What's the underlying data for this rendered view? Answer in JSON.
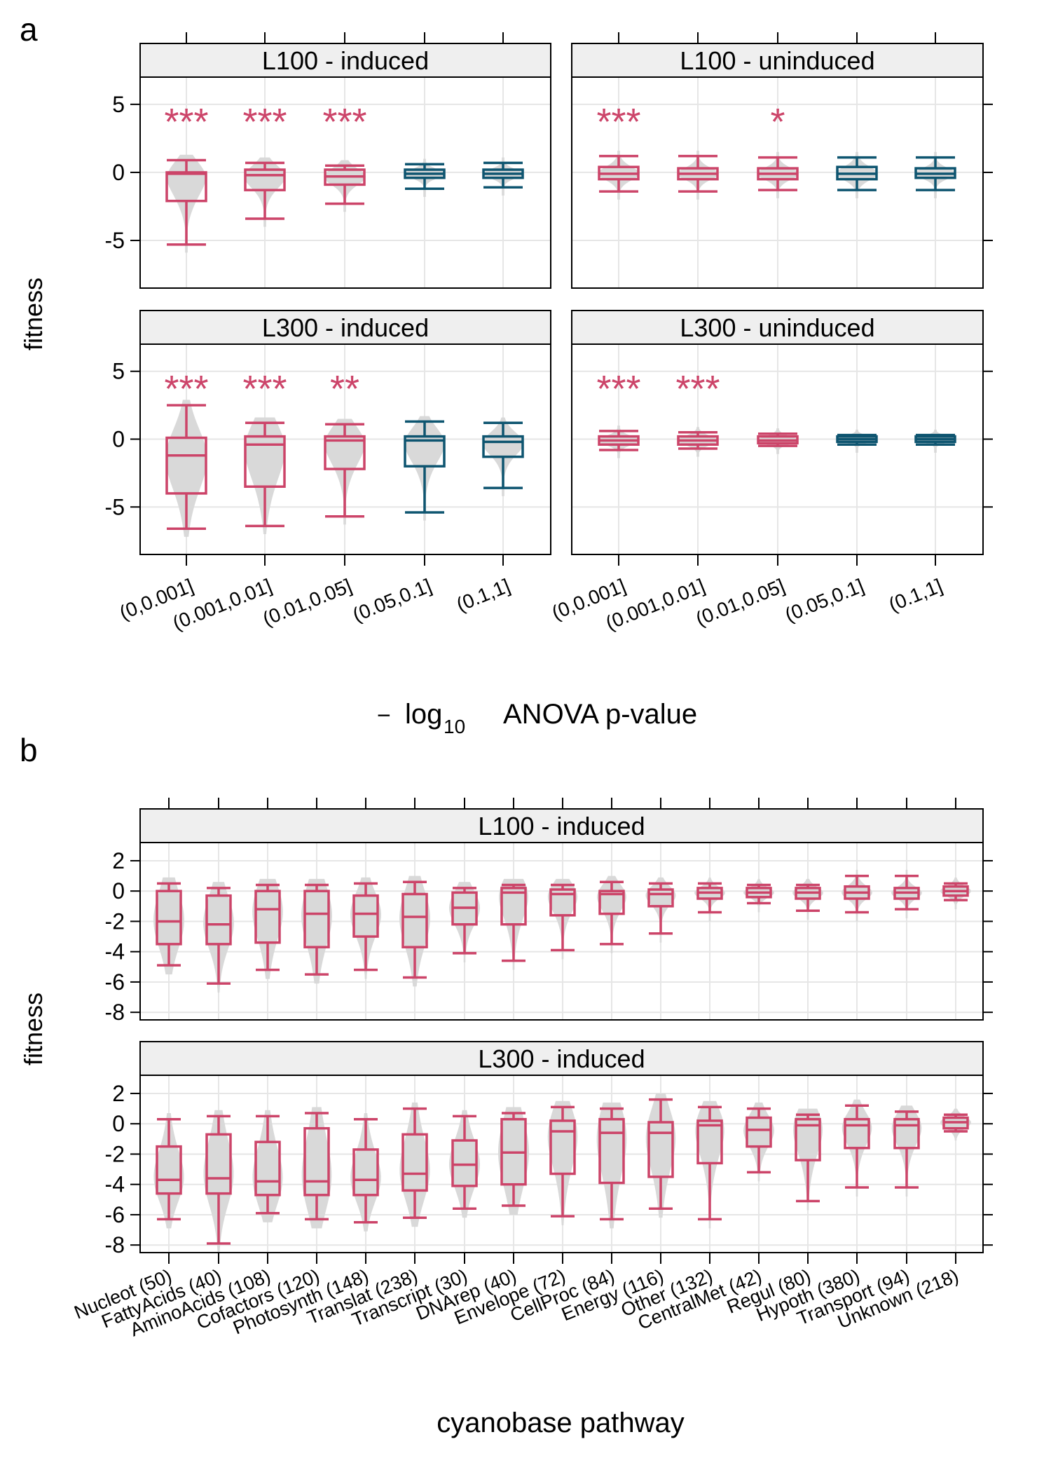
{
  "panel_labels": [
    "a",
    "b"
  ],
  "colors": {
    "significant": "#cc4469",
    "nonsignificant": "#0e5570",
    "violin": "#d9d9d9",
    "strip_bg": "#efefef",
    "grid": "#e6e6e6"
  },
  "chart_data": [
    {
      "type": "box",
      "panel": "a",
      "xlabel": "− log₁₀ ANOVA p-value",
      "xlabel_parts": {
        "minus": "−",
        "log": "log",
        "sub": "10",
        "rest": "ANOVA p-value"
      },
      "ylabel": "fitness",
      "ylim": [
        -8.5,
        7
      ],
      "yticks": [
        -5,
        0,
        5
      ],
      "yticklabels": [
        "-5",
        "0",
        "5"
      ],
      "categories": [
        "(0,0.001]",
        "(0.001,0.01]",
        "(0.01,0.05]",
        "(0.05,0.1]",
        "(0.1,1]"
      ],
      "facets": [
        {
          "strip": "L100 - induced",
          "stars": [
            "***",
            "***",
            "***",
            "",
            ""
          ],
          "colors": [
            "significant",
            "significant",
            "significant",
            "nonsignificant",
            "nonsignificant"
          ],
          "boxes": [
            {
              "whislo": -5.3,
              "q1": -2.1,
              "med": -0.1,
              "q3": 0.0,
              "whishi": 0.9
            },
            {
              "whislo": -3.4,
              "q1": -1.3,
              "med": -0.2,
              "q3": 0.2,
              "whishi": 0.7
            },
            {
              "whislo": -2.3,
              "q1": -0.9,
              "med": -0.3,
              "q3": 0.2,
              "whishi": 0.5
            },
            {
              "whislo": -1.2,
              "q1": -0.4,
              "med": -0.1,
              "q3": 0.2,
              "whishi": 0.6
            },
            {
              "whislo": -1.1,
              "q1": -0.4,
              "med": -0.1,
              "q3": 0.2,
              "whishi": 0.7
            }
          ]
        },
        {
          "strip": "L100 - uninduced",
          "stars": [
            "***",
            "",
            "*",
            "",
            ""
          ],
          "colors": [
            "significant",
            "significant",
            "significant",
            "nonsignificant",
            "nonsignificant"
          ],
          "boxes": [
            {
              "whislo": -1.4,
              "q1": -0.5,
              "med": -0.1,
              "q3": 0.4,
              "whishi": 1.2
            },
            {
              "whislo": -1.4,
              "q1": -0.5,
              "med": -0.1,
              "q3": 0.3,
              "whishi": 1.2
            },
            {
              "whislo": -1.3,
              "q1": -0.5,
              "med": -0.1,
              "q3": 0.3,
              "whishi": 1.1
            },
            {
              "whislo": -1.3,
              "q1": -0.5,
              "med": -0.1,
              "q3": 0.4,
              "whishi": 1.1
            },
            {
              "whislo": -1.3,
              "q1": -0.4,
              "med": -0.1,
              "q3": 0.3,
              "whishi": 1.1
            }
          ]
        },
        {
          "strip": "L300 - induced",
          "stars": [
            "***",
            "***",
            "**",
            "",
            ""
          ],
          "colors": [
            "significant",
            "significant",
            "significant",
            "nonsignificant",
            "nonsignificant"
          ],
          "boxes": [
            {
              "whislo": -6.6,
              "q1": -4.0,
              "med": -1.2,
              "q3": 0.1,
              "whishi": 2.5
            },
            {
              "whislo": -6.4,
              "q1": -3.5,
              "med": -0.4,
              "q3": 0.2,
              "whishi": 1.2
            },
            {
              "whislo": -5.7,
              "q1": -2.2,
              "med": -0.1,
              "q3": 0.2,
              "whishi": 1.1
            },
            {
              "whislo": -5.4,
              "q1": -2.0,
              "med": -0.1,
              "q3": 0.2,
              "whishi": 1.3
            },
            {
              "whislo": -3.6,
              "q1": -1.3,
              "med": -0.2,
              "q3": 0.2,
              "whishi": 1.2
            }
          ]
        },
        {
          "strip": "L300 - uninduced",
          "stars": [
            "***",
            "***",
            "",
            "",
            ""
          ],
          "colors": [
            "significant",
            "significant",
            "significant",
            "nonsignificant",
            "nonsignificant"
          ],
          "boxes": [
            {
              "whislo": -0.8,
              "q1": -0.4,
              "med": -0.1,
              "q3": 0.2,
              "whishi": 0.6
            },
            {
              "whislo": -0.7,
              "q1": -0.4,
              "med": -0.1,
              "q3": 0.2,
              "whishi": 0.5
            },
            {
              "whislo": -0.5,
              "q1": -0.3,
              "med": -0.1,
              "q3": 0.2,
              "whishi": 0.4
            },
            {
              "whislo": -0.4,
              "q1": -0.2,
              "med": 0.0,
              "q3": 0.2,
              "whishi": 0.3
            },
            {
              "whislo": -0.4,
              "q1": -0.2,
              "med": 0.0,
              "q3": 0.2,
              "whishi": 0.3
            }
          ]
        }
      ]
    },
    {
      "type": "box",
      "panel": "b",
      "xlabel": "cyanobase pathway",
      "ylabel": "fitness",
      "ylim": [
        -8.5,
        3.2
      ],
      "yticks": [
        -8,
        -6,
        -4,
        -2,
        0,
        2
      ],
      "yticklabels": [
        "-8",
        "-6",
        "-4",
        "-2",
        "0",
        "2"
      ],
      "categories": [
        "Nucleot (50)",
        "FattyAcids (40)",
        "AminoAcids (108)",
        "Cofactors (120)",
        "Photosynth (148)",
        "Translat (238)",
        "Transcript (30)",
        "DNArep (40)",
        "Envelope (72)",
        "CellProc (84)",
        "Energy (116)",
        "Other (132)",
        "CentralMet (42)",
        "Regul (80)",
        "Hypoth (380)",
        "Transport (94)",
        "Unknown (218)"
      ],
      "facets": [
        {
          "strip": "L100 - induced",
          "boxes": [
            {
              "whislo": -4.9,
              "q1": -3.5,
              "med": -2.0,
              "q3": 0.0,
              "whishi": 0.5
            },
            {
              "whislo": -6.1,
              "q1": -3.5,
              "med": -2.2,
              "q3": -0.3,
              "whishi": 0.2
            },
            {
              "whislo": -5.2,
              "q1": -3.4,
              "med": -1.2,
              "q3": 0.0,
              "whishi": 0.4
            },
            {
              "whislo": -5.5,
              "q1": -3.7,
              "med": -1.5,
              "q3": 0.0,
              "whishi": 0.4
            },
            {
              "whislo": -5.2,
              "q1": -3.0,
              "med": -1.5,
              "q3": -0.3,
              "whishi": 0.5
            },
            {
              "whislo": -5.7,
              "q1": -3.7,
              "med": -1.7,
              "q3": -0.2,
              "whishi": 0.6
            },
            {
              "whislo": -4.1,
              "q1": -2.2,
              "med": -1.1,
              "q3": -0.1,
              "whishi": 0.2
            },
            {
              "whislo": -4.6,
              "q1": -2.2,
              "med": -0.1,
              "q3": 0.2,
              "whishi": 0.4
            },
            {
              "whislo": -3.9,
              "q1": -1.6,
              "med": -0.2,
              "q3": 0.1,
              "whishi": 0.4
            },
            {
              "whislo": -3.5,
              "q1": -1.5,
              "med": -0.2,
              "q3": 0.0,
              "whishi": 0.6
            },
            {
              "whislo": -2.8,
              "q1": -1.0,
              "med": -0.2,
              "q3": 0.1,
              "whishi": 0.5
            },
            {
              "whislo": -1.4,
              "q1": -0.5,
              "med": -0.1,
              "q3": 0.2,
              "whishi": 0.5
            },
            {
              "whislo": -0.8,
              "q1": -0.4,
              "med": -0.1,
              "q3": 0.2,
              "whishi": 0.4
            },
            {
              "whislo": -1.3,
              "q1": -0.5,
              "med": -0.1,
              "q3": 0.2,
              "whishi": 0.4
            },
            {
              "whislo": -1.4,
              "q1": -0.5,
              "med": -0.1,
              "q3": 0.3,
              "whishi": 1.0
            },
            {
              "whislo": -1.2,
              "q1": -0.5,
              "med": -0.1,
              "q3": 0.2,
              "whishi": 1.0
            },
            {
              "whislo": -0.6,
              "q1": -0.3,
              "med": 0.0,
              "q3": 0.3,
              "whishi": 0.5
            }
          ]
        },
        {
          "strip": "L300 - induced",
          "boxes": [
            {
              "whislo": -6.3,
              "q1": -4.6,
              "med": -3.7,
              "q3": -1.5,
              "whishi": 0.3
            },
            {
              "whislo": -7.9,
              "q1": -4.6,
              "med": -3.6,
              "q3": -0.7,
              "whishi": 0.5
            },
            {
              "whislo": -5.9,
              "q1": -4.7,
              "med": -3.8,
              "q3": -1.2,
              "whishi": 0.5
            },
            {
              "whislo": -6.3,
              "q1": -4.7,
              "med": -3.8,
              "q3": -0.3,
              "whishi": 0.7
            },
            {
              "whislo": -6.5,
              "q1": -4.7,
              "med": -3.7,
              "q3": -1.7,
              "whishi": 0.3
            },
            {
              "whislo": -6.2,
              "q1": -4.4,
              "med": -3.3,
              "q3": -0.7,
              "whishi": 1.0
            },
            {
              "whislo": -5.6,
              "q1": -4.1,
              "med": -2.7,
              "q3": -1.1,
              "whishi": 0.5
            },
            {
              "whislo": -5.4,
              "q1": -4.0,
              "med": -1.9,
              "q3": 0.3,
              "whishi": 0.7
            },
            {
              "whislo": -6.1,
              "q1": -3.3,
              "med": -0.5,
              "q3": 0.2,
              "whishi": 1.1
            },
            {
              "whislo": -6.3,
              "q1": -3.9,
              "med": -0.6,
              "q3": 0.3,
              "whishi": 1.0
            },
            {
              "whislo": -5.6,
              "q1": -3.5,
              "med": -0.6,
              "q3": 0.1,
              "whishi": 1.6
            },
            {
              "whislo": -6.3,
              "q1": -2.6,
              "med": -0.1,
              "q3": 0.2,
              "whishi": 1.1
            },
            {
              "whislo": -3.2,
              "q1": -1.5,
              "med": -0.4,
              "q3": 0.4,
              "whishi": 1.0
            },
            {
              "whislo": -5.1,
              "q1": -2.4,
              "med": -0.1,
              "q3": 0.3,
              "whishi": 0.6
            },
            {
              "whislo": -4.2,
              "q1": -1.6,
              "med": -0.1,
              "q3": 0.3,
              "whishi": 1.2
            },
            {
              "whislo": -4.2,
              "q1": -1.6,
              "med": -0.1,
              "q3": 0.3,
              "whishi": 0.8
            },
            {
              "whislo": -0.5,
              "q1": -0.3,
              "med": 0.1,
              "q3": 0.4,
              "whishi": 0.6
            }
          ]
        }
      ]
    }
  ]
}
